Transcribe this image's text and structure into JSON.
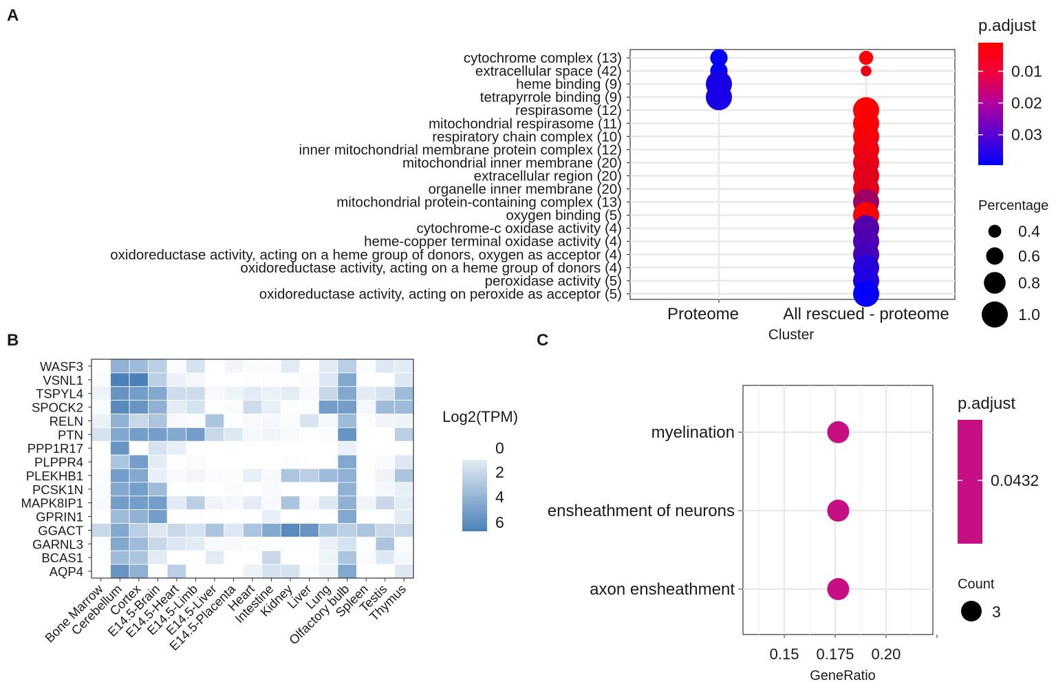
{
  "panel_letters": {
    "a": "A",
    "b": "B",
    "c": "C"
  },
  "chart_data": [
    {
      "type": "scatter",
      "panel": "A",
      "xlabel": "Cluster",
      "ylabel": "",
      "categories": [
        "Proteome",
        "All rescued - proteome"
      ],
      "terms": [
        "cytochrome complex (13)",
        "extracellular space (42)",
        "heme binding (9)",
        "tetrapyrrole binding (9)",
        "respirasome (12)",
        "mitochondrial respirasome (11)",
        "respiratory chain complex (10)",
        "inner mitochondrial membrane protein complex (12)",
        "mitochondrial inner membrane (20)",
        "extracellular region (20)",
        "organelle inner membrane (20)",
        "mitochondrial protein-containing complex (13)",
        "oxygen binding (5)",
        "cytochrome-c oxidase activity (4)",
        "heme-copper terminal oxidase activity (4)",
        "oxidoreductase activity, acting on a heme group of donors, oxygen as acceptor (4)",
        "oxidoreductase activity, acting on a heme group of donors (4)",
        "peroxidase activity (5)",
        "oxidoreductase activity, acting on peroxide as acceptor (5)"
      ],
      "points": [
        {
          "cluster": "Proteome",
          "term": 0,
          "percentage": 0.6,
          "p_adjust": 0.039
        },
        {
          "cluster": "Proteome",
          "term": 1,
          "percentage": 0.6,
          "p_adjust": 0.039
        },
        {
          "cluster": "Proteome",
          "term": 2,
          "percentage": 1.0,
          "p_adjust": 0.036
        },
        {
          "cluster": "Proteome",
          "term": 3,
          "percentage": 1.0,
          "p_adjust": 0.036
        },
        {
          "cluster": "All rescued - proteome",
          "term": 0,
          "percentage": 0.45,
          "p_adjust": 0.0015
        },
        {
          "cluster": "All rescued - proteome",
          "term": 1,
          "percentage": 0.3,
          "p_adjust": 0.004
        },
        {
          "cluster": "All rescued - proteome",
          "term": 4,
          "percentage": 1.0,
          "p_adjust": 0.0012
        },
        {
          "cluster": "All rescued - proteome",
          "term": 5,
          "percentage": 1.0,
          "p_adjust": 0.0015
        },
        {
          "cluster": "All rescued - proteome",
          "term": 6,
          "percentage": 1.0,
          "p_adjust": 0.002
        },
        {
          "cluster": "All rescued - proteome",
          "term": 7,
          "percentage": 1.0,
          "p_adjust": 0.003
        },
        {
          "cluster": "All rescued - proteome",
          "term": 8,
          "percentage": 1.0,
          "p_adjust": 0.004
        },
        {
          "cluster": "All rescued - proteome",
          "term": 9,
          "percentage": 1.0,
          "p_adjust": 0.005
        },
        {
          "cluster": "All rescued - proteome",
          "term": 10,
          "percentage": 1.0,
          "p_adjust": 0.005
        },
        {
          "cluster": "All rescued - proteome",
          "term": 11,
          "percentage": 1.0,
          "p_adjust": 0.016
        },
        {
          "cluster": "All rescued - proteome",
          "term": 12,
          "percentage": 1.0,
          "p_adjust": 0.0012
        },
        {
          "cluster": "All rescued - proteome",
          "term": 13,
          "percentage": 1.0,
          "p_adjust": 0.027
        },
        {
          "cluster": "All rescued - proteome",
          "term": 14,
          "percentage": 1.0,
          "p_adjust": 0.028
        },
        {
          "cluster": "All rescued - proteome",
          "term": 15,
          "percentage": 1.0,
          "p_adjust": 0.029
        },
        {
          "cluster": "All rescued - proteome",
          "term": 16,
          "percentage": 1.0,
          "p_adjust": 0.034
        },
        {
          "cluster": "All rescued - proteome",
          "term": 17,
          "percentage": 1.0,
          "p_adjust": 0.035
        },
        {
          "cluster": "All rescued - proteome",
          "term": 18,
          "percentage": 1.0,
          "p_adjust": 0.039
        }
      ],
      "color_legend": {
        "title": "p.adjust",
        "ticks": [
          0.01,
          0.02,
          0.03
        ],
        "tick_labels": [
          "0.01",
          "0.02",
          "0.03"
        ],
        "range": [
          0.001,
          0.0396
        ],
        "low_color": "#ff0000",
        "high_color": "#0000ff"
      },
      "size_legend": {
        "title": "Percentage",
        "values": [
          0.4,
          0.6,
          0.8,
          1.0
        ],
        "labels": [
          "0.4",
          "0.6",
          "0.8",
          "1.0"
        ]
      },
      "grid": true,
      "legend_position": "right"
    },
    {
      "type": "heatmap",
      "panel": "B",
      "rows": [
        "WASF3",
        "VSNL1",
        "TSPYL4",
        "SPOCK2",
        "RELN",
        "PTN",
        "PPP1R17",
        "PLPPR4",
        "PLEKHB1",
        "PCSK1N",
        "MAPK8IP1",
        "GPRIN1",
        "GGACT",
        "GARNL3",
        "BCAS1",
        "AQP4"
      ],
      "columns": [
        "Bone Marrow",
        "Cerebellum",
        "Cortex",
        "E14.5-Brain",
        "E14.5-Heart",
        "E14.5-Limb",
        "E14.5-Liver",
        "E14.5-Placenta",
        "Heart",
        "Intestine",
        "Kidney",
        "Liver",
        "Lung",
        "Olfactory bulb",
        "Spleen",
        "Testis",
        "Thymus"
      ],
      "values": [
        [
          0,
          4,
          3.5,
          2.5,
          0.2,
          1.5,
          0,
          0.5,
          0.2,
          0.2,
          1,
          0,
          1,
          2.5,
          0.2,
          1.2,
          1
        ],
        [
          0.2,
          6.5,
          6.5,
          2.5,
          0.7,
          0.4,
          0,
          0,
          0.1,
          0.1,
          0.1,
          0.2,
          1.2,
          4.5,
          0,
          0,
          1.2
        ],
        [
          0.6,
          5.5,
          5,
          4.5,
          1.8,
          1.8,
          0.3,
          0.6,
          1,
          0.7,
          1,
          0.3,
          2,
          4.5,
          1,
          1.5,
          3.5
        ],
        [
          0.2,
          6,
          5.5,
          4,
          1,
          1.5,
          0,
          0.2,
          1.8,
          0.8,
          0.1,
          0.1,
          5,
          5,
          0.4,
          3.5,
          3.5
        ],
        [
          0.7,
          4,
          2,
          3,
          0.3,
          0.2,
          3,
          0.1,
          0.3,
          0.4,
          0.2,
          1.4,
          0.4,
          3.5,
          0.1,
          0.5,
          0.6
        ],
        [
          1.5,
          4.5,
          5,
          5,
          4.5,
          5,
          2,
          1.2,
          0.4,
          0.5,
          0.3,
          0.1,
          0.2,
          5.5,
          0,
          0,
          2.5
        ],
        [
          0,
          5.5,
          0,
          1.5,
          0.8,
          0,
          0,
          0,
          0,
          0,
          0,
          0,
          0,
          0.7,
          0,
          0,
          0
        ],
        [
          0,
          3,
          5,
          1,
          0.1,
          0.2,
          0,
          0,
          0,
          0,
          0.1,
          0,
          0,
          4.5,
          0,
          0.3,
          1.2
        ],
        [
          0.2,
          5,
          4.5,
          0.8,
          0.3,
          0.5,
          0.2,
          0.2,
          0.8,
          0.3,
          3,
          2.5,
          3.5,
          4,
          0.1,
          0.6,
          3
        ],
        [
          0.2,
          4.5,
          5,
          3.5,
          0,
          0.1,
          0,
          0.2,
          0,
          0.3,
          0,
          0,
          0,
          4,
          0,
          0.4,
          0.8
        ],
        [
          0.3,
          5,
          5,
          5,
          1,
          2.5,
          0.5,
          0.4,
          1,
          0.3,
          3,
          0.3,
          1.2,
          4,
          0.5,
          2,
          1
        ],
        [
          0,
          3.5,
          4,
          5,
          0,
          0.1,
          0,
          0,
          0,
          0.8,
          0,
          0,
          0,
          4.5,
          0,
          0,
          1
        ],
        [
          2,
          4.5,
          2.5,
          1.2,
          2,
          1.5,
          3,
          1.2,
          3,
          4.5,
          6,
          5.5,
          3,
          2.5,
          3,
          2,
          2
        ],
        [
          0.1,
          4.5,
          3.5,
          2,
          1.2,
          1,
          0.3,
          0.3,
          0.2,
          0.1,
          0.1,
          0.1,
          0.8,
          1.5,
          0.1,
          3,
          0.2
        ],
        [
          0.1,
          3.5,
          3,
          1,
          0,
          0,
          1,
          0,
          0,
          2,
          0,
          0,
          0.6,
          3,
          0.2,
          1.2,
          0.4
        ],
        [
          0,
          5.5,
          4,
          0.2,
          2.5,
          0,
          0,
          0,
          0.6,
          1.5,
          1.5,
          0.2,
          0.6,
          4.5,
          0,
          0,
          1.2
        ]
      ],
      "legend": {
        "title": "Log2(TPM)",
        "ticks": [
          "0",
          "2",
          "4",
          "6"
        ]
      },
      "value_range": [
        0,
        7
      ],
      "low_color": "#ffffff",
      "high_color": "#3d77b3"
    },
    {
      "type": "scatter",
      "panel": "C",
      "xlabel": "GeneRatio",
      "ylabel": "",
      "terms": [
        "myelination",
        "ensheathment of neurons",
        "axon ensheathment"
      ],
      "points": [
        {
          "term": "myelination",
          "gene_ratio": 0.1765,
          "count": 3,
          "p_adjust": 0.0432
        },
        {
          "term": "ensheathment of neurons",
          "gene_ratio": 0.1765,
          "count": 3,
          "p_adjust": 0.0432
        },
        {
          "term": "axon ensheathment",
          "gene_ratio": 0.1765,
          "count": 3,
          "p_adjust": 0.0432
        }
      ],
      "xticks": [
        0.15,
        0.175,
        0.2
      ],
      "xtick_labels": [
        "0.15",
        "0.175",
        "0.20"
      ],
      "xlim": [
        0.1297,
        0.223
      ],
      "color_legend": {
        "title": "p.adjust",
        "labels": [
          "0.0432"
        ],
        "color": "#c70f84"
      },
      "size_legend": {
        "title": "Count",
        "labels": [
          "3"
        ]
      },
      "grid": true,
      "legend_position": "right"
    }
  ]
}
